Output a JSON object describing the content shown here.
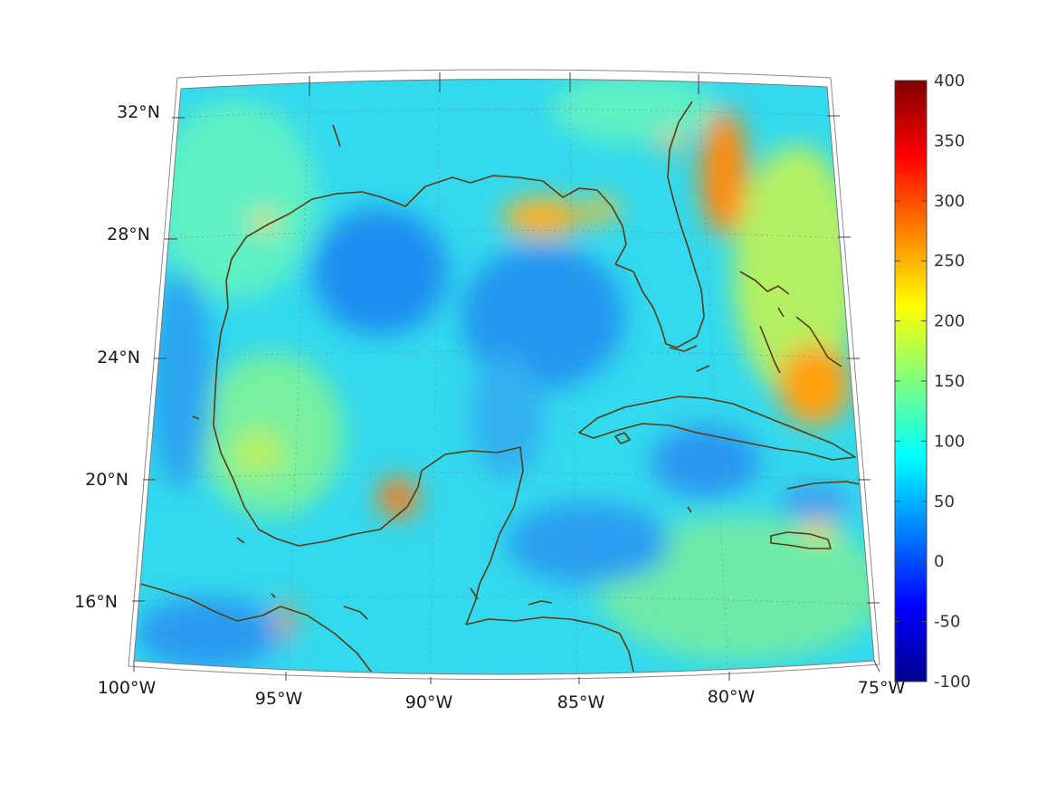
{
  "map": {
    "longitude_labels": [
      "100°W",
      "95°W",
      "90°W",
      "85°W",
      "80°W",
      "75°W"
    ],
    "latitude_labels": [
      "16°N",
      "20°N",
      "24°N",
      "28°N",
      "32°N"
    ],
    "longitude_range": [
      -100,
      -75
    ],
    "latitude_range": [
      14,
      33
    ],
    "colormap": "jet",
    "land_outline_color": "#5a3c12"
  },
  "colorbar": {
    "min": -100,
    "max": 400,
    "tick_labels": [
      "400",
      "350",
      "300",
      "250",
      "200",
      "150",
      "100",
      "50",
      "0",
      "-50",
      "-100"
    ],
    "colors": [
      "#00008f",
      "#0000ff",
      "#0080ff",
      "#00ffff",
      "#80ff80",
      "#ffff00",
      "#ff8000",
      "#ff0000",
      "#800000"
    ]
  }
}
